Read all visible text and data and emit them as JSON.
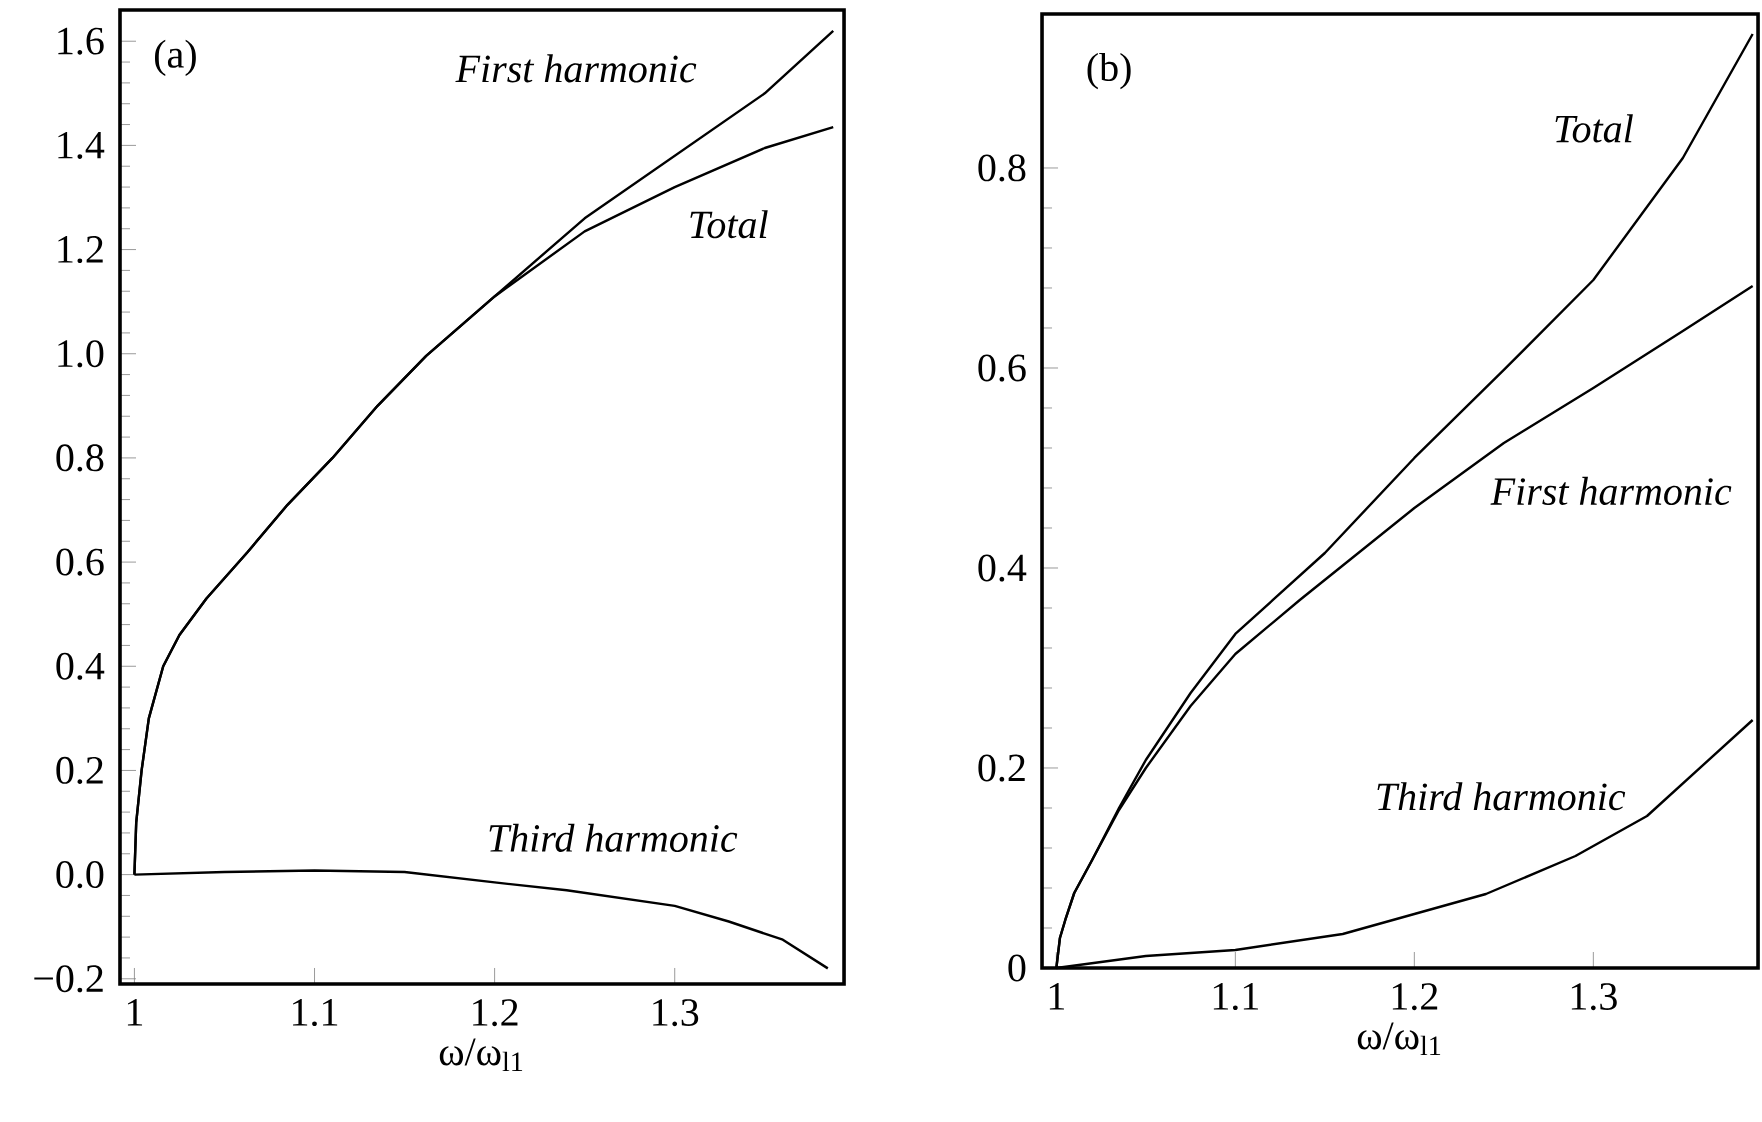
{
  "chart_data": [
    {
      "type": "line",
      "title": "(a)",
      "xlabel": "ω/ω$_{l1}$",
      "xlim": [
        0.992,
        1.394
      ],
      "ylim": [
        -0.21,
        1.66
      ],
      "xticks": [
        1,
        1.1,
        1.2,
        1.3
      ],
      "yticks": [
        {
          "value": -0.2,
          "label": "−0.2"
        },
        {
          "value": 0,
          "label": "0.0"
        },
        0.2,
        0.4,
        0.6,
        0.8,
        {
          "value": 1,
          "label": "1.0"
        },
        1.2,
        1.4,
        1.6
      ],
      "legend": false,
      "series": [
        {
          "name": "First harmonic",
          "color": "#000000",
          "x": [
            1,
            1.001,
            1.004,
            1.008,
            1.016,
            1.025,
            1.04,
            1.063,
            1.085,
            1.11,
            1.135,
            1.162,
            1.2,
            1.25,
            1.3,
            1.35,
            1.388
          ],
          "values": [
            0,
            0.1,
            0.2,
            0.3,
            0.4,
            0.46,
            0.53,
            0.62,
            0.71,
            0.8,
            0.9,
            0.996,
            1.11,
            1.26,
            1.38,
            1.5,
            1.62
          ]
        },
        {
          "name": "Total",
          "color": "#000000",
          "x": [
            1,
            1.001,
            1.004,
            1.008,
            1.016,
            1.025,
            1.04,
            1.063,
            1.085,
            1.11,
            1.135,
            1.162,
            1.2,
            1.25,
            1.3,
            1.35,
            1.388
          ],
          "values": [
            0,
            0.1,
            0.2,
            0.3,
            0.4,
            0.46,
            0.53,
            0.62,
            0.71,
            0.8,
            0.9,
            0.996,
            1.11,
            1.235,
            1.32,
            1.395,
            1.435
          ]
        },
        {
          "name": "Third harmonic",
          "color": "#000000",
          "x": [
            1,
            1.05,
            1.1,
            1.15,
            1.2,
            1.24,
            1.3,
            1.33,
            1.36,
            1.385
          ],
          "values": [
            0,
            0.005,
            0.008,
            0.005,
            -0.015,
            -0.03,
            -0.06,
            -0.09,
            -0.125,
            -0.18
          ]
        }
      ]
    },
    {
      "type": "line",
      "title": "(b)",
      "xlabel": "ω/ω$_{l1}$",
      "xlim": [
        0.992,
        1.392
      ],
      "ylim": [
        0,
        0.954
      ],
      "xticks": [
        1,
        1.1,
        1.2,
        1.3
      ],
      "yticks": [
        0,
        0.2,
        0.4,
        0.6,
        0.8
      ],
      "legend": false,
      "series": [
        {
          "name": "Total",
          "color": "#000000",
          "x": [
            1,
            1.002,
            1.005,
            1.01,
            1.02,
            1.035,
            1.05,
            1.075,
            1.1,
            1.121,
            1.15,
            1.2,
            1.25,
            1.3,
            1.35,
            1.389
          ],
          "values": [
            0,
            0.03,
            0.048,
            0.075,
            0.108,
            0.16,
            0.208,
            0.275,
            0.334,
            0.368,
            0.415,
            0.51,
            0.598,
            0.688,
            0.81,
            0.934
          ]
        },
        {
          "name": "First harmonic",
          "color": "#000000",
          "x": [
            1,
            1.002,
            1.005,
            1.01,
            1.02,
            1.035,
            1.05,
            1.075,
            1.1,
            1.136,
            1.2,
            1.25,
            1.3,
            1.35,
            1.389
          ],
          "values": [
            0,
            0.03,
            0.048,
            0.075,
            0.108,
            0.158,
            0.2,
            0.262,
            0.314,
            0.368,
            0.46,
            0.525,
            0.58,
            0.637,
            0.682
          ]
        },
        {
          "name": "Third harmonic",
          "color": "#000000",
          "x": [
            1,
            1.05,
            1.1,
            1.16,
            1.2,
            1.24,
            1.29,
            1.33,
            1.389
          ],
          "values": [
            0,
            0.012,
            0.018,
            0.034,
            0.054,
            0.074,
            0.112,
            0.152,
            0.248
          ]
        }
      ]
    }
  ]
}
